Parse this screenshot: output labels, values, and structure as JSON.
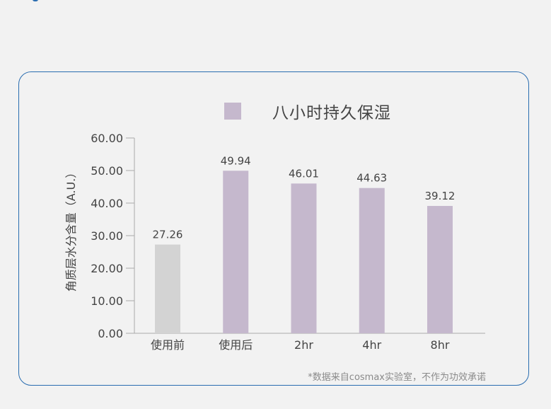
{
  "chart_data": {
    "type": "bar",
    "legend": "八小时持久保湿",
    "ylabel": "角质层水分含量（A.U.）",
    "xlabel": "",
    "ylim": [
      0,
      60
    ],
    "yticks": [
      "0.00",
      "10.00",
      "20.00",
      "30.00",
      "40.00",
      "50.00",
      "60.00"
    ],
    "categories": [
      "使用前",
      "使用后",
      "2hr",
      "4hr",
      "8hr"
    ],
    "values": [
      27.26,
      49.94,
      46.01,
      44.63,
      39.12
    ],
    "value_labels": [
      "27.26",
      "49.94",
      "46.01",
      "44.63",
      "39.12"
    ],
    "bar_colors": [
      "#d3d3d3",
      "#c5b8cd",
      "#c5b8cd",
      "#c5b8cd",
      "#c5b8cd"
    ],
    "grid": false,
    "legend_position": "top"
  },
  "footnote": "*数据来自cosmax实验室，不作为功效承诺",
  "colors": {
    "card_border": "#2a6db0",
    "background": "#f2f2f2",
    "axis": "#aaaaaa",
    "text": "#444444"
  }
}
